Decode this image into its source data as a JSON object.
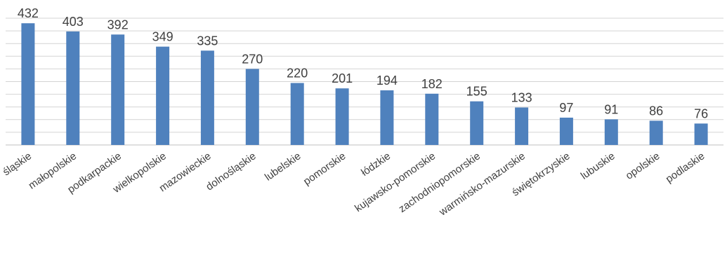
{
  "chart_data": {
    "type": "bar",
    "categories": [
      "śląskie",
      "małopolskie",
      "podkarpackie",
      "wielkopolskie",
      "mazowieckie",
      "dolnośląskie",
      "lubelskie",
      "pomorskie",
      "łódzkie",
      "kujawsko-pomorskie",
      "zachodniopomorskie",
      "warmińsko-mazurskie",
      "świętokrzyskie",
      "lubuskie",
      "opolskie",
      "podlaskie"
    ],
    "values": [
      432,
      403,
      392,
      349,
      335,
      270,
      220,
      201,
      194,
      182,
      155,
      133,
      97,
      91,
      86,
      76
    ],
    "ylim": [
      0,
      450
    ],
    "grid": true,
    "gridline_step": 50,
    "legend": "none",
    "colors": {
      "bar": "#4f81bd",
      "gridline": "#d4d4d4",
      "label": "#404040"
    }
  }
}
